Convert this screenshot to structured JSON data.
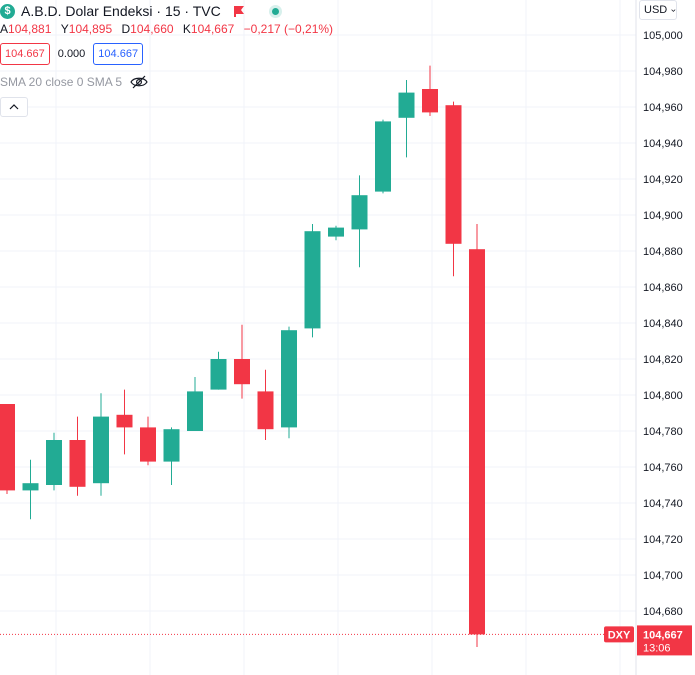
{
  "header": {
    "logo_letter": "$",
    "title": "A.B.D. Dolar Endeksi · 15 · TVC",
    "ohlc": [
      {
        "key": "A",
        "value": "104,881"
      },
      {
        "key": "Y",
        "value": "104,895"
      },
      {
        "key": "D",
        "value": "104,660"
      },
      {
        "key": "K",
        "value": "104,667"
      }
    ],
    "change": "−0,217 (−0,21%)",
    "sell_price": "104.667",
    "spread": "0.000",
    "buy_price": "104.667",
    "indicator": "SMA 20 close 0 SMA 5",
    "icons": {
      "flag": "flag-icon",
      "status": "live-dot-icon",
      "visibility": "eye-off-icon",
      "collapse": "chevron-up-icon",
      "currency_dropdown": "chevron-down-icon"
    }
  },
  "currency_button": "USD",
  "colors": {
    "up": "#22ab94",
    "down": "#f23645",
    "grid": "#f0f3fa",
    "text": "#131722",
    "accent_blue": "#2962ff"
  },
  "chart_data": {
    "type": "candlestick",
    "symbol": "DXY",
    "y_tick_labels": [
      "105,000",
      "104,980",
      "104,960",
      "104,940",
      "104,920",
      "104,900",
      "104,880",
      "104,860",
      "104,840",
      "104,820",
      "104,800",
      "104,780",
      "104,760",
      "104,740",
      "104,720",
      "104,700",
      "104,680"
    ],
    "ylim": [
      104.652,
      105.018
    ],
    "grid": true,
    "candles": [
      {
        "o": 104.795,
        "h": 104.795,
        "l": 104.745,
        "c": 104.747
      },
      {
        "o": 104.747,
        "h": 104.764,
        "l": 104.731,
        "c": 104.751
      },
      {
        "o": 104.75,
        "h": 104.779,
        "l": 104.747,
        "c": 104.775
      },
      {
        "o": 104.775,
        "h": 104.788,
        "l": 104.744,
        "c": 104.749
      },
      {
        "o": 104.751,
        "h": 104.801,
        "l": 104.744,
        "c": 104.788
      },
      {
        "o": 104.789,
        "h": 104.803,
        "l": 104.767,
        "c": 104.782
      },
      {
        "o": 104.782,
        "h": 104.788,
        "l": 104.761,
        "c": 104.763
      },
      {
        "o": 104.763,
        "h": 104.782,
        "l": 104.75,
        "c": 104.781
      },
      {
        "o": 104.78,
        "h": 104.81,
        "l": 104.78,
        "c": 104.802
      },
      {
        "o": 104.803,
        "h": 104.824,
        "l": 104.803,
        "c": 104.82
      },
      {
        "o": 104.82,
        "h": 104.839,
        "l": 104.798,
        "c": 104.806
      },
      {
        "o": 104.802,
        "h": 104.814,
        "l": 104.775,
        "c": 104.781
      },
      {
        "o": 104.782,
        "h": 104.838,
        "l": 104.776,
        "c": 104.836
      },
      {
        "o": 104.837,
        "h": 104.895,
        "l": 104.832,
        "c": 104.891
      },
      {
        "o": 104.888,
        "h": 104.894,
        "l": 104.886,
        "c": 104.893
      },
      {
        "o": 104.892,
        "h": 104.922,
        "l": 104.871,
        "c": 104.911
      },
      {
        "o": 104.913,
        "h": 104.953,
        "l": 104.912,
        "c": 104.952
      },
      {
        "o": 104.954,
        "h": 104.975,
        "l": 104.932,
        "c": 104.968
      },
      {
        "o": 104.97,
        "h": 104.983,
        "l": 104.955,
        "c": 104.957
      },
      {
        "o": 104.961,
        "h": 104.963,
        "l": 104.866,
        "c": 104.884
      },
      {
        "o": 104.881,
        "h": 104.895,
        "l": 104.66,
        "c": 104.667
      }
    ],
    "last_price": {
      "label": "DXY",
      "value": "104,667",
      "countdown": "13:06"
    }
  }
}
